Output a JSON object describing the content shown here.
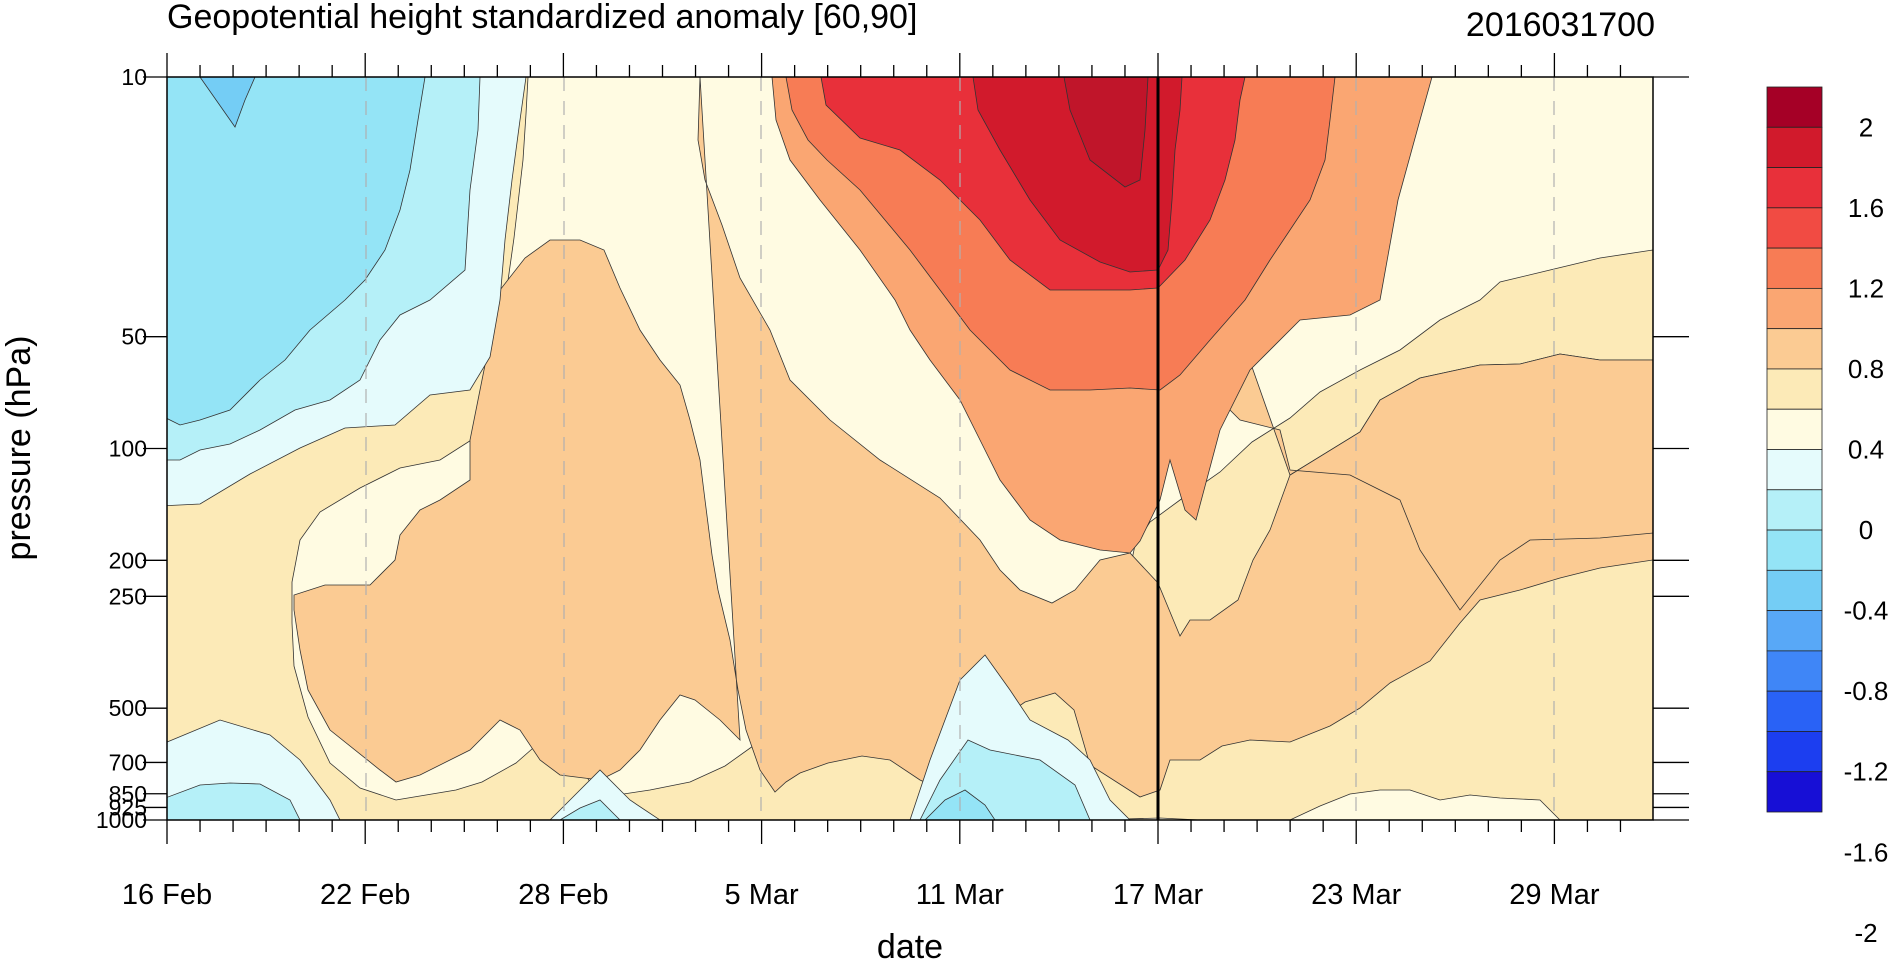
{
  "chart_data": {
    "type": "heatmap",
    "title": "Geopotential height standardized anomaly [60,90]",
    "subtitle": "2016031700",
    "xlabel": "date",
    "ylabel": "pressure (hPa)",
    "x_tick_labels": [
      "16 Feb",
      "22 Feb",
      "28 Feb",
      "5 Mar",
      "11 Mar",
      "17 Mar",
      "23 Mar",
      "29 Mar"
    ],
    "y_tick_labels": [
      "10",
      "50",
      "100",
      "200",
      "250",
      "500",
      "700",
      "850",
      "925",
      "1000"
    ],
    "y_scale": "log",
    "y_reversed": true,
    "x_range": [
      "16 Feb",
      "3 Apr"
    ],
    "y_range": [
      1000,
      10
    ],
    "highlight_date": "17 Mar",
    "colorbar_labels": [
      "2",
      "1.6",
      "1.2",
      "0.8",
      "0.4",
      "0",
      "-0.4",
      "-0.8",
      "-1.2",
      "-1.6",
      "-2"
    ],
    "colorbar_colors": [
      "#a50026",
      "#d11a2c",
      "#e8303a",
      "#f14b43",
      "#f77c55",
      "#faa672",
      "#fbcb93",
      "#fceab7",
      "#fffbe2",
      "#e5fbfc",
      "#b5f0f8",
      "#94e4f6",
      "#74cdf5",
      "#58a8f7",
      "#3f86f7",
      "#2962f6",
      "#1c3ef0",
      "#170fd6"
    ],
    "contour_bands": [
      {
        "level_min": -0.8,
        "level_max": -0.6,
        "color": "#74cdf5"
      },
      {
        "level_min": -0.6,
        "level_max": -0.4,
        "color": "#94e4f6"
      },
      {
        "level_min": -0.4,
        "level_max": -0.2,
        "color": "#b5f0f8"
      },
      {
        "level_min": -0.2,
        "level_max": 0.0,
        "color": "#e5fbfc"
      },
      {
        "level_min": 0.0,
        "level_max": 0.2,
        "color": "#fffbe2"
      },
      {
        "level_min": 0.2,
        "level_max": 0.4,
        "color": "#fceab7"
      },
      {
        "level_min": 0.4,
        "level_max": 0.6,
        "color": "#fbcb93"
      },
      {
        "level_min": 0.6,
        "level_max": 0.8,
        "color": "#faa672"
      },
      {
        "level_min": 0.8,
        "level_max": 1.2,
        "color": "#f77c55"
      },
      {
        "level_min": 1.2,
        "level_max": 1.6,
        "color": "#e8303a"
      }
    ]
  }
}
